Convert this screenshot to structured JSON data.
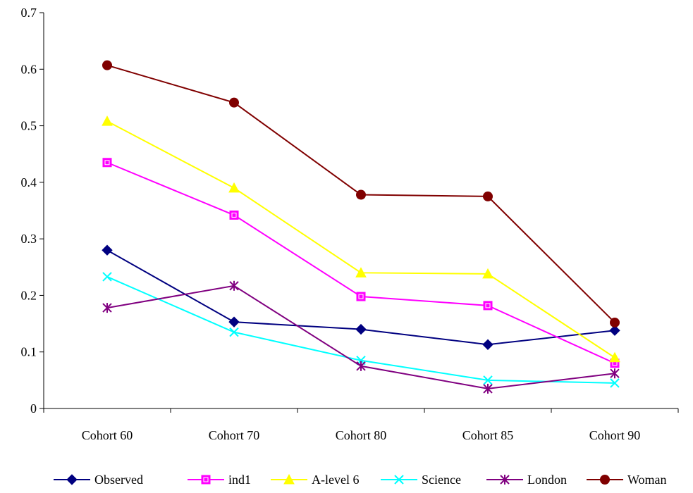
{
  "chart_data": {
    "type": "line",
    "categories": [
      "Cohort 60",
      "Cohort 70",
      "Cohort 80",
      "Cohort 85",
      "Cohort 90"
    ],
    "ylim": [
      0,
      0.7
    ],
    "yticks": [
      "0",
      "0.1",
      "0.2",
      "0.3",
      "0.4",
      "0.5",
      "0.6",
      "0.7"
    ],
    "grid": false,
    "legend_position": "bottom",
    "series": [
      {
        "name": "Observed",
        "color": "#000080",
        "marker": "diamond",
        "values": [
          0.28,
          0.153,
          0.14,
          0.113,
          0.138
        ]
      },
      {
        "name": "ind1",
        "color": "#ff00ff",
        "marker": "square",
        "values": [
          0.435,
          0.342,
          0.198,
          0.182,
          0.08
        ]
      },
      {
        "name": "A-level 6",
        "color": "#ffff00",
        "marker": "triangle",
        "values": [
          0.508,
          0.39,
          0.24,
          0.238,
          0.09
        ]
      },
      {
        "name": "Science",
        "color": "#00ffff",
        "marker": "x",
        "values": [
          0.233,
          0.135,
          0.085,
          0.05,
          0.045
        ]
      },
      {
        "name": "London",
        "color": "#800080",
        "marker": "star",
        "values": [
          0.178,
          0.217,
          0.075,
          0.035,
          0.062
        ]
      },
      {
        "name": "Woman",
        "color": "#800000",
        "marker": "circle",
        "values": [
          0.607,
          0.541,
          0.378,
          0.375,
          0.152
        ]
      }
    ]
  }
}
